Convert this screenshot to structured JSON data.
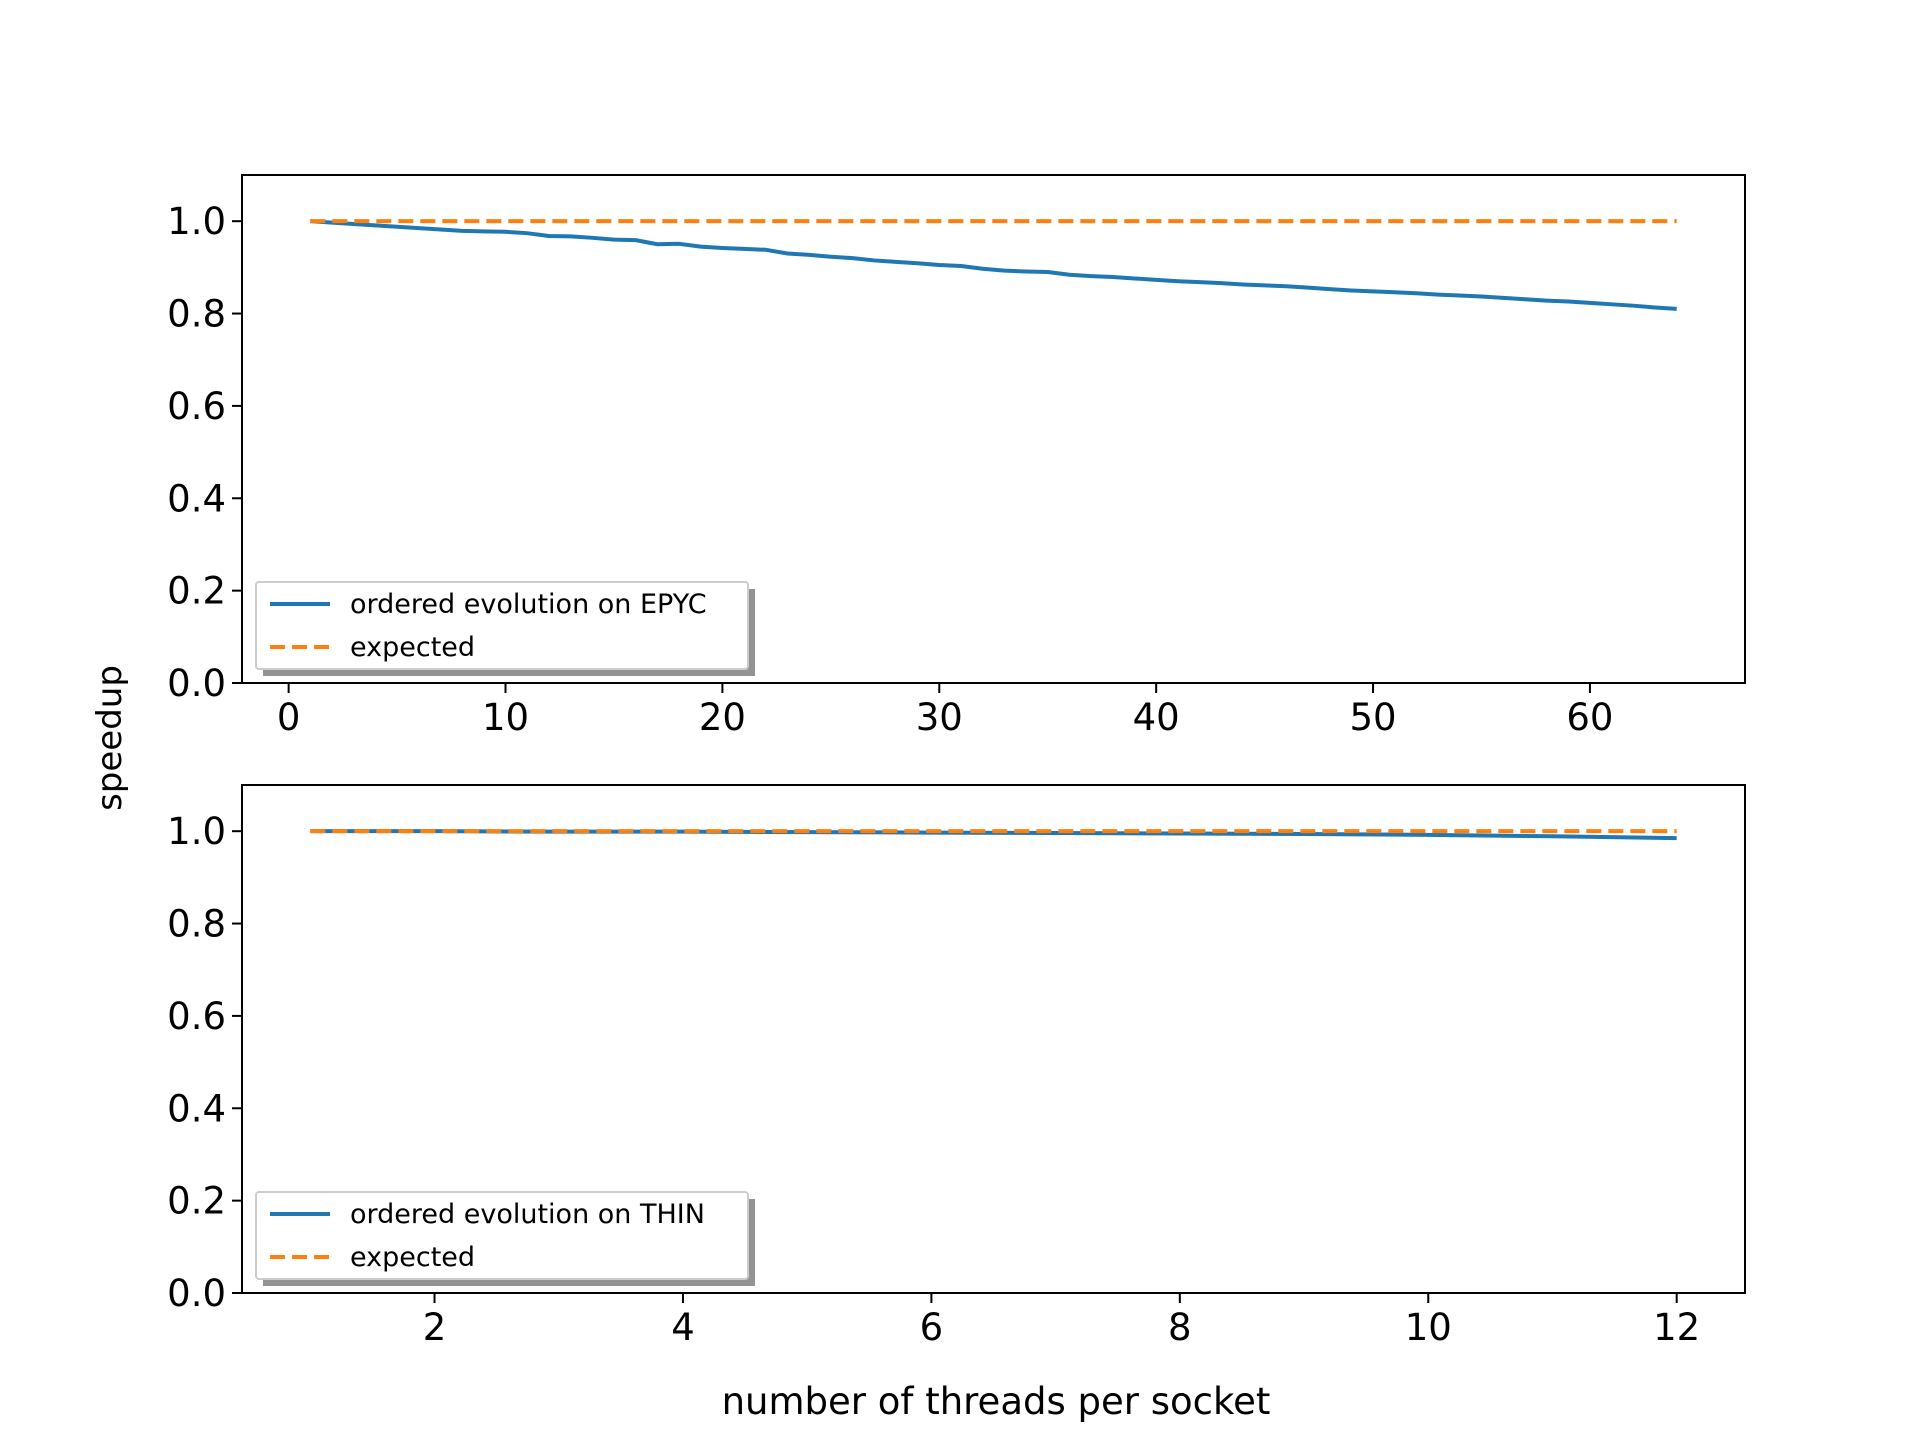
{
  "figure": {
    "ylabel": "speedup",
    "xlabel": "number of threads per socket"
  },
  "colors": {
    "series1": "#1f77b4",
    "expected": "#ff7f0e",
    "axes": "#000000",
    "legend_border": "#cccccc"
  },
  "chart_data": [
    {
      "type": "line",
      "title": "",
      "xlabel": "",
      "ylabel": "speedup",
      "xlim": [
        -2.15,
        67.15
      ],
      "ylim": [
        0.0,
        1.1
      ],
      "xticks": [
        0,
        10,
        20,
        30,
        40,
        50,
        60
      ],
      "yticks": [
        0.0,
        0.2,
        0.4,
        0.6,
        0.8,
        1.0
      ],
      "xtick_labels": [
        "0",
        "10",
        "20",
        "30",
        "40",
        "50",
        "60"
      ],
      "ytick_labels": [
        "0.0",
        "0.2",
        "0.4",
        "0.6",
        "0.8",
        "1.0"
      ],
      "legend_position": "lower-left",
      "grid": false,
      "series": [
        {
          "name": "ordered evolution on EPYC",
          "style": "solid",
          "x": [
            1,
            2,
            3,
            4,
            5,
            6,
            7,
            8,
            9,
            10,
            11,
            12,
            13,
            14,
            15,
            16,
            17,
            18,
            19,
            20,
            21,
            22,
            23,
            24,
            25,
            26,
            27,
            28,
            29,
            30,
            31,
            32,
            33,
            34,
            35,
            36,
            37,
            38,
            39,
            40,
            41,
            42,
            43,
            44,
            45,
            46,
            47,
            48,
            49,
            50,
            51,
            52,
            53,
            54,
            55,
            56,
            57,
            58,
            59,
            60,
            61,
            62,
            63,
            64
          ],
          "y": [
            1.0,
            0.997,
            0.994,
            0.991,
            0.988,
            0.985,
            0.982,
            0.979,
            0.978,
            0.977,
            0.974,
            0.968,
            0.967,
            0.964,
            0.96,
            0.959,
            0.95,
            0.951,
            0.945,
            0.942,
            0.94,
            0.938,
            0.93,
            0.927,
            0.923,
            0.92,
            0.915,
            0.912,
            0.909,
            0.905,
            0.903,
            0.897,
            0.893,
            0.891,
            0.89,
            0.884,
            0.881,
            0.879,
            0.876,
            0.873,
            0.87,
            0.868,
            0.866,
            0.863,
            0.861,
            0.859,
            0.856,
            0.853,
            0.85,
            0.848,
            0.846,
            0.844,
            0.841,
            0.839,
            0.837,
            0.834,
            0.831,
            0.828,
            0.826,
            0.823,
            0.82,
            0.817,
            0.813,
            0.81
          ]
        },
        {
          "name": "expected",
          "style": "dashed",
          "x": [
            1,
            64
          ],
          "y": [
            1.0,
            1.0
          ]
        }
      ]
    },
    {
      "type": "line",
      "title": "",
      "xlabel": "number of threads per socket",
      "ylabel": "speedup",
      "xlim": [
        0.45,
        12.55
      ],
      "ylim": [
        0.0,
        1.1
      ],
      "xticks": [
        2,
        4,
        6,
        8,
        10,
        12
      ],
      "yticks": [
        0.0,
        0.2,
        0.4,
        0.6,
        0.8,
        1.0
      ],
      "xtick_labels": [
        "2",
        "4",
        "6",
        "8",
        "10",
        "12"
      ],
      "ytick_labels": [
        "0.0",
        "0.2",
        "0.4",
        "0.6",
        "0.8",
        "1.0"
      ],
      "legend_position": "lower-left",
      "grid": false,
      "series": [
        {
          "name": "ordered evolution on THIN",
          "style": "solid",
          "x": [
            1,
            2,
            3,
            4,
            5,
            6,
            7,
            8,
            9,
            10,
            11,
            12
          ],
          "y": [
            1.0,
            1.0,
            0.999,
            0.999,
            0.998,
            0.997,
            0.996,
            0.995,
            0.994,
            0.992,
            0.989,
            0.985
          ]
        },
        {
          "name": "expected",
          "style": "dashed",
          "x": [
            1,
            12
          ],
          "y": [
            1.0,
            1.0
          ]
        }
      ]
    }
  ]
}
